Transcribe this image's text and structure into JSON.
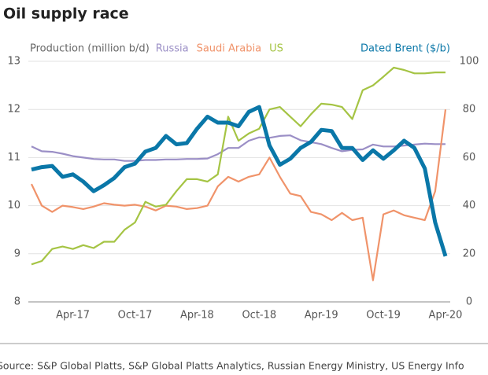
{
  "chart_data": {
    "type": "line",
    "title": "Oil supply race",
    "y_label": "Production (million b/d)",
    "source": "Source: S&P Global Platts, S&P Global Platts Analytics, Russian Energy Ministry, US Energy Info",
    "categories": [
      null,
      null,
      null,
      null,
      "Apr-17",
      null,
      null,
      null,
      null,
      null,
      "Oct-17",
      null,
      null,
      null,
      null,
      null,
      "Apr-18",
      null,
      null,
      null,
      null,
      null,
      "Oct-18",
      null,
      null,
      null,
      null,
      null,
      "Apr-19",
      null,
      null,
      null,
      null,
      null,
      "Oct-19",
      null,
      null,
      null,
      null,
      null,
      "Apr-20"
    ],
    "ylim": [
      8,
      13
    ],
    "yticks": [
      8,
      9,
      10,
      11,
      12,
      13
    ],
    "y2lim": [
      0,
      100
    ],
    "y2ticks": [
      0,
      20,
      40,
      60,
      80,
      100
    ],
    "grid": true,
    "series": [
      {
        "name": "Russia",
        "color": "#9b8fc6",
        "values": [
          11.23,
          11.13,
          11.12,
          11.08,
          11.03,
          11.0,
          10.97,
          10.96,
          10.96,
          10.93,
          10.93,
          10.95,
          10.95,
          10.96,
          10.96,
          10.97,
          10.97,
          10.98,
          11.07,
          11.2,
          11.2,
          11.35,
          11.42,
          11.41,
          11.45,
          11.46,
          11.36,
          11.32,
          11.28,
          11.2,
          11.13,
          11.16,
          11.17,
          11.27,
          11.23,
          11.23,
          11.25,
          11.27,
          11.29,
          11.28,
          11.28
        ]
      },
      {
        "name": "Saudi Arabia",
        "color": "#f0936a",
        "values": [
          10.45,
          10.0,
          9.87,
          10.0,
          9.97,
          9.93,
          9.98,
          10.05,
          10.02,
          10.0,
          10.02,
          9.98,
          9.9,
          10.0,
          9.98,
          9.93,
          9.95,
          10.0,
          10.4,
          10.6,
          10.5,
          10.6,
          10.65,
          11.0,
          10.6,
          10.25,
          10.2,
          9.87,
          9.82,
          9.7,
          9.85,
          9.7,
          9.75,
          8.45,
          9.82,
          9.9,
          9.8,
          9.75,
          9.7,
          10.3,
          12.0
        ]
      },
      {
        "name": "US",
        "color": "#a5c444",
        "values": [
          8.78,
          8.85,
          9.1,
          9.15,
          9.1,
          9.18,
          9.12,
          9.25,
          9.25,
          9.5,
          9.65,
          10.08,
          9.98,
          10.02,
          10.3,
          10.55,
          10.55,
          10.5,
          10.65,
          11.85,
          11.35,
          11.5,
          11.6,
          12.0,
          12.05,
          11.85,
          11.65,
          11.9,
          12.12,
          12.1,
          12.05,
          11.8,
          12.4,
          12.5,
          12.68,
          12.87,
          12.82,
          12.75,
          12.75,
          12.77,
          12.77
        ]
      },
      {
        "name": "Dated Brent ($/b)",
        "color": "#0a77a8",
        "axis": "y2",
        "values": [
          55,
          56,
          56.5,
          52,
          53,
          50,
          46,
          48.5,
          51.5,
          56,
          57.5,
          62.5,
          64,
          69,
          65.5,
          66,
          72,
          77,
          74.5,
          74.5,
          73,
          79,
          81,
          65,
          57,
          59.5,
          64,
          66.5,
          71.5,
          71,
          64,
          64,
          59,
          63,
          59.5,
          63,
          67,
          64,
          55.5,
          33,
          19
        ]
      }
    ]
  }
}
